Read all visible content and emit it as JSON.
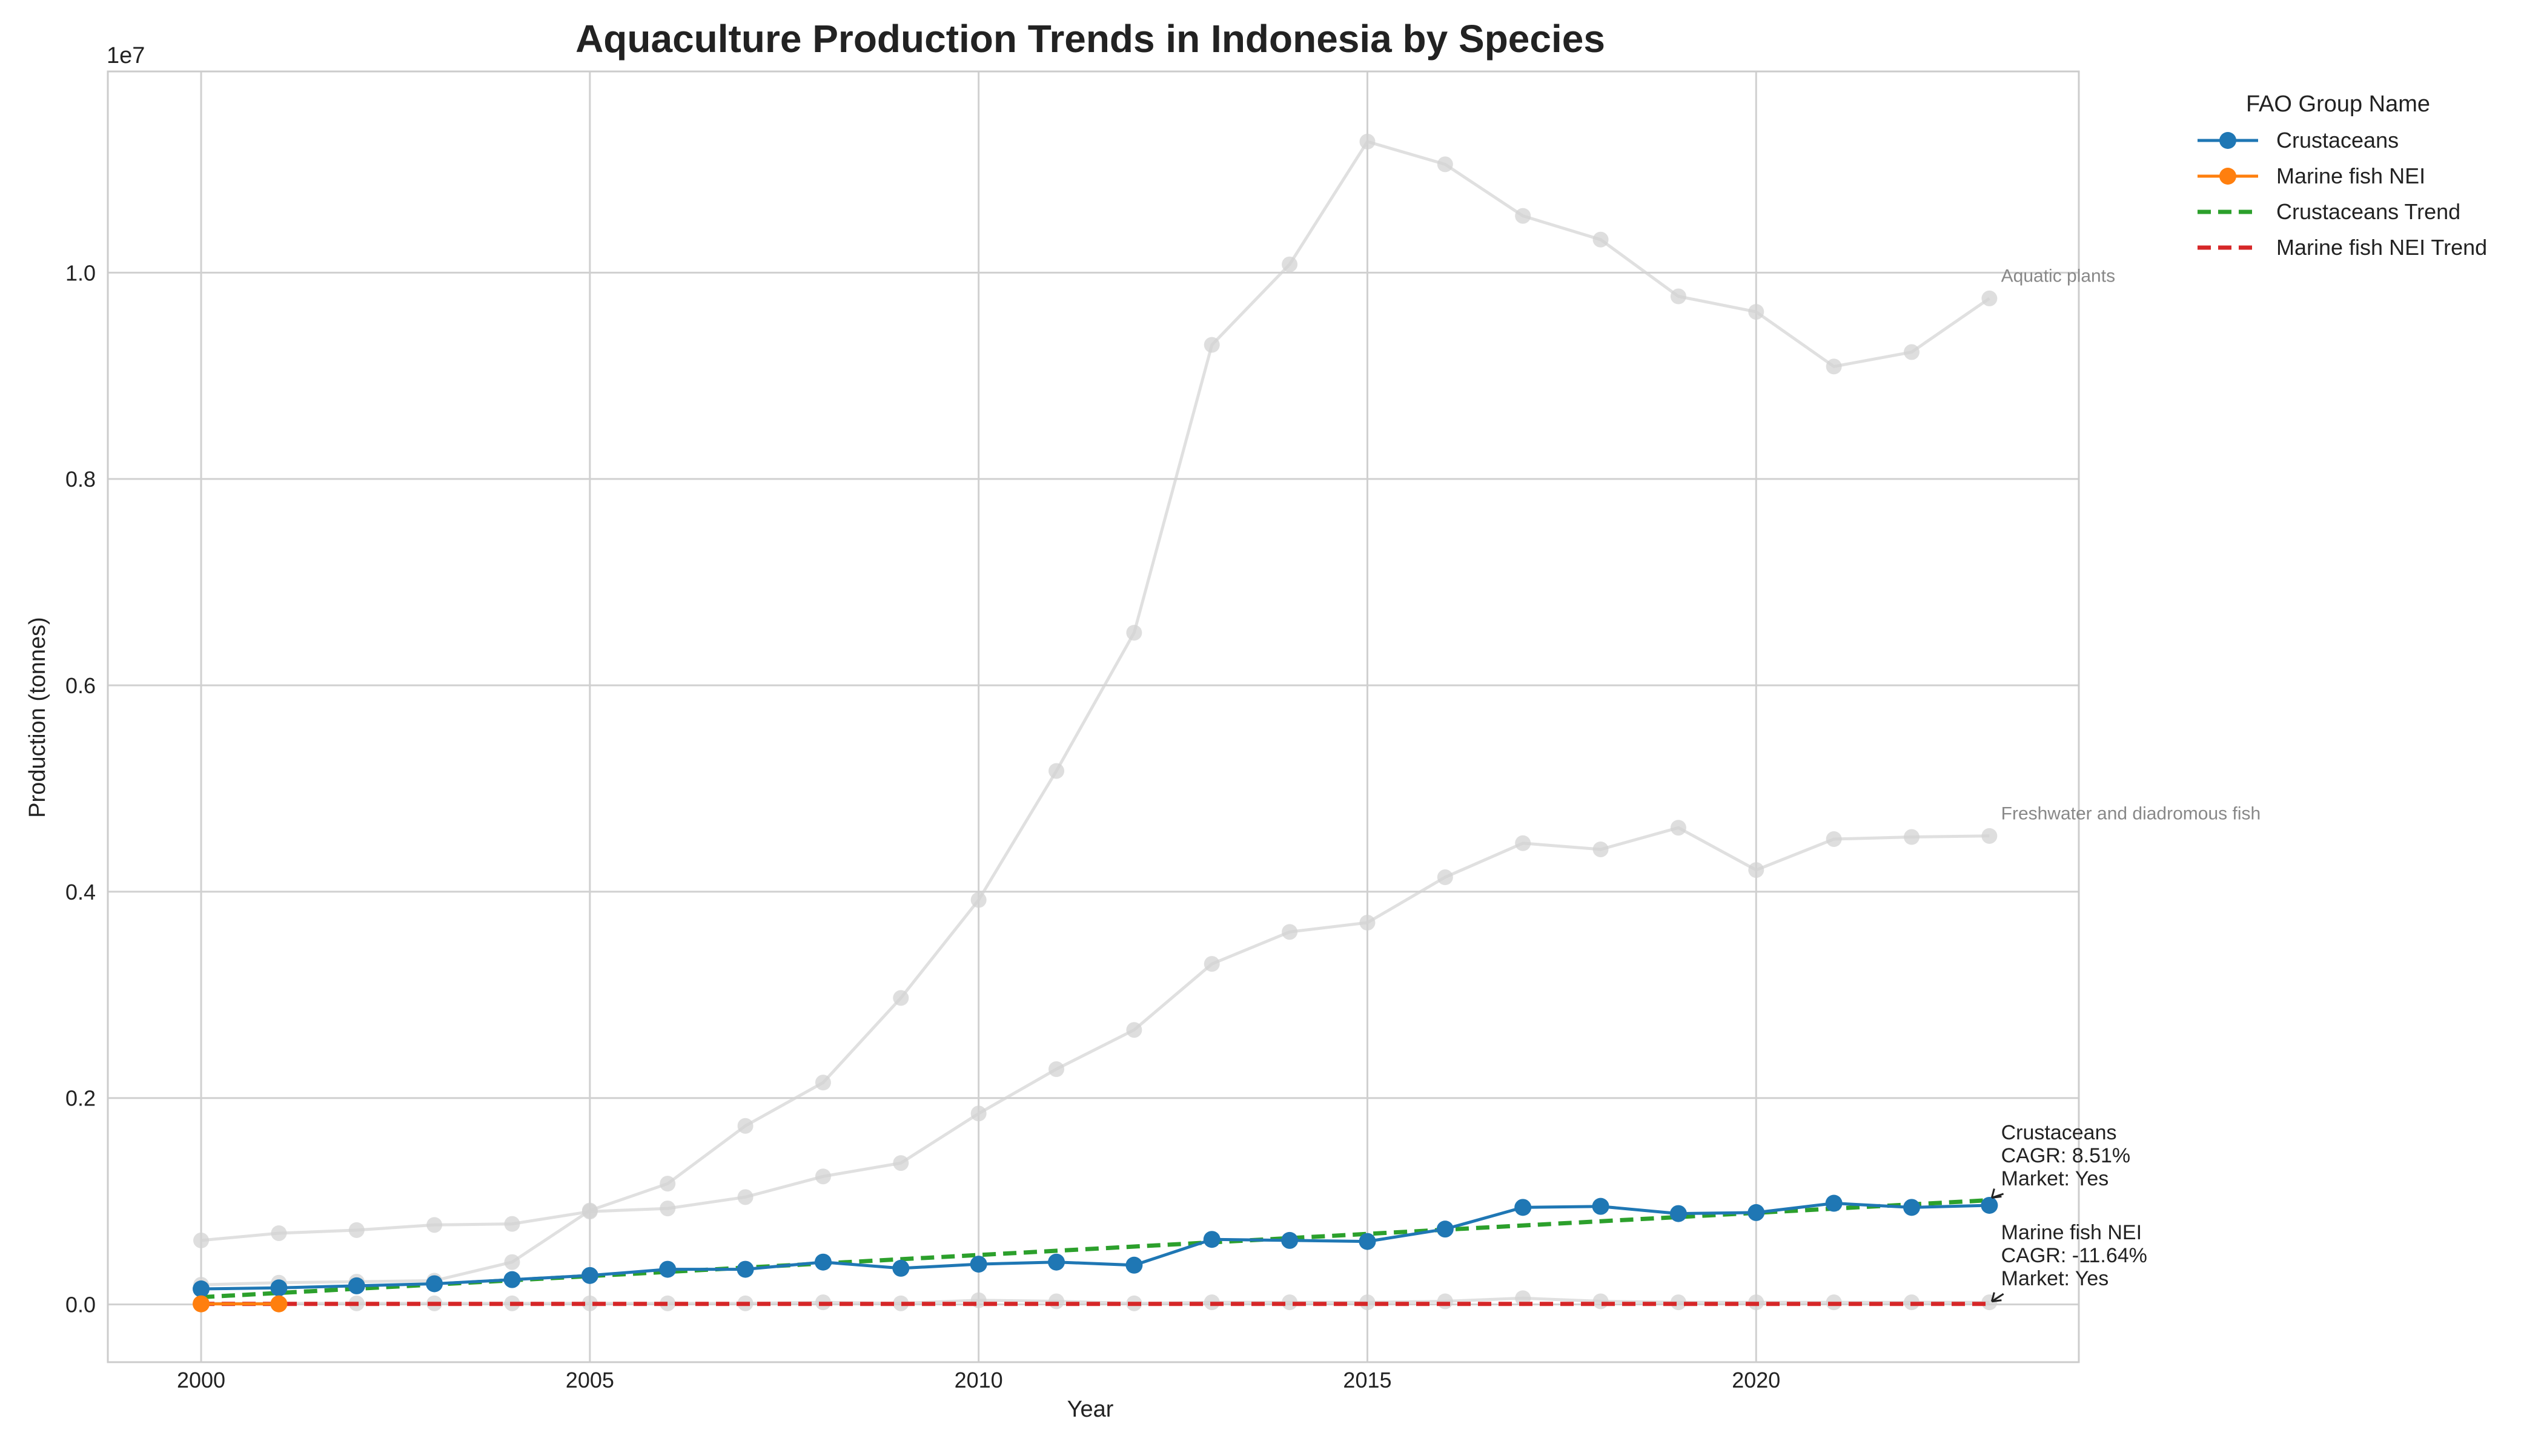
{
  "chart_data": {
    "type": "line",
    "title": "Aquaculture Production Trends in Indonesia by Species",
    "xlabel": "Year",
    "ylabel": "Production (tonnes)",
    "y_offset_text": "1e7",
    "xlim": [
      1998.8,
      2024.15
    ],
    "ylim": [
      -560000,
      11950000
    ],
    "x_ticks": [
      2000,
      2005,
      2010,
      2015,
      2020
    ],
    "y_ticks": [
      0,
      2000000,
      4000000,
      6000000,
      8000000,
      10000000
    ],
    "y_tick_labels": [
      "0.0",
      "0.2",
      "0.4",
      "0.6",
      "0.8",
      "1.0"
    ],
    "grid": true,
    "legend": {
      "title": "FAO Group Name",
      "placement": "outside-top-right",
      "entries": [
        "Crustaceans",
        "Marine fish NEI",
        "Crustaceans Trend",
        "Marine fish NEI Trend"
      ]
    },
    "x": [
      2000,
      2001,
      2002,
      2003,
      2004,
      2005,
      2006,
      2007,
      2008,
      2009,
      2010,
      2011,
      2012,
      2013,
      2014,
      2015,
      2016,
      2017,
      2018,
      2019,
      2020,
      2021,
      2022,
      2023
    ],
    "series": [
      {
        "name": "Crustaceans",
        "role": "highlight",
        "color": "#1f77b4",
        "values": [
          150000,
          160000,
          180000,
          200000,
          240000,
          280000,
          340000,
          340000,
          410000,
          350000,
          390000,
          410000,
          380000,
          630000,
          620000,
          610000,
          730000,
          940000,
          950000,
          880000,
          890000,
          980000,
          940000,
          960000
        ]
      },
      {
        "name": "Marine fish NEI",
        "role": "highlight",
        "color": "#ff7f0e",
        "values": [
          5000,
          5000,
          null,
          null,
          null,
          null,
          null,
          null,
          null,
          null,
          null,
          null,
          null,
          null,
          null,
          null,
          null,
          null,
          null,
          null,
          null,
          null,
          null,
          null
        ]
      },
      {
        "name": "Crustaceans Trend",
        "role": "trend",
        "color": "#2ca02c",
        "start": [
          2000,
          70000
        ],
        "end": [
          2023,
          1010000
        ]
      },
      {
        "name": "Marine fish NEI Trend",
        "role": "trend",
        "color": "#d62728",
        "start": [
          2000,
          5000
        ],
        "end": [
          2023,
          5000
        ]
      },
      {
        "name": "Aquatic plants",
        "role": "background",
        "color": "#d3d3d3",
        "values": [
          190000,
          210000,
          220000,
          230000,
          410000,
          910000,
          1170000,
          1730000,
          2150000,
          2970000,
          3920000,
          5170000,
          6510000,
          9300000,
          10080000,
          11270000,
          11050000,
          10550000,
          10320000,
          9770000,
          9620000,
          9090000,
          9230000,
          9750000
        ]
      },
      {
        "name": "Freshwater and diadromous fish",
        "role": "background",
        "color": "#d3d3d3",
        "values": [
          620000,
          690000,
          720000,
          770000,
          780000,
          900000,
          930000,
          1040000,
          1240000,
          1370000,
          1850000,
          2280000,
          2660000,
          3300000,
          3610000,
          3700000,
          4140000,
          4470000,
          4410000,
          4620000,
          4210000,
          4510000,
          4530000,
          4540000
        ]
      },
      {
        "name": "Marine fish (background)",
        "role": "background",
        "color": "#d3d3d3",
        "values": [
          10000,
          10000,
          10000,
          10000,
          10000,
          10000,
          10000,
          10000,
          20000,
          10000,
          40000,
          30000,
          10000,
          20000,
          20000,
          20000,
          30000,
          60000,
          30000,
          20000,
          20000,
          20000,
          20000,
          20000
        ]
      }
    ],
    "annotations": [
      {
        "series": "Crustaceans",
        "lines": [
          "Crustaceans",
          "CAGR: 8.51%",
          "Market: Yes"
        ],
        "at": [
          2023,
          1010000
        ],
        "text_at": [
          2023.15,
          1600000
        ]
      },
      {
        "series": "Marine fish NEI",
        "lines": [
          "Marine fish NEI",
          "CAGR: -11.64%",
          "Market: Yes"
        ],
        "at": [
          2023,
          5000
        ],
        "text_at": [
          2023.15,
          630000
        ]
      }
    ],
    "background_labels": [
      {
        "text": "Aquatic plants",
        "at": [
          2023.15,
          9910000
        ]
      },
      {
        "text": "Freshwater and diadromous fish",
        "at": [
          2023.15,
          4700000
        ]
      }
    ]
  }
}
